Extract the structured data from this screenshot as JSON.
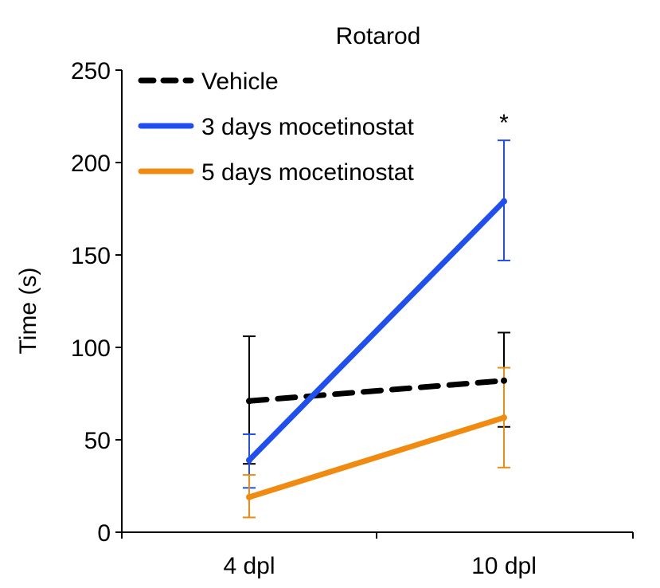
{
  "chart_data": {
    "type": "line",
    "title": "Rotarod",
    "xlabel": "",
    "ylabel": "Time (s)",
    "categories": [
      "4 dpl",
      "10 dpl"
    ],
    "ylim": [
      0,
      250
    ],
    "yticks": [
      0,
      50,
      100,
      150,
      200,
      250
    ],
    "grid": false,
    "legend_position": "top-left",
    "series": [
      {
        "name": "Vehicle",
        "color": "#000000",
        "style": "dashed",
        "values": [
          71,
          82
        ],
        "err_upper": [
          106,
          108
        ],
        "err_lower": [
          37,
          57
        ]
      },
      {
        "name": "3 days mocetinostat",
        "color": "#1f4ff0",
        "style": "solid",
        "values": [
          39,
          179
        ],
        "err_upper": [
          53,
          212
        ],
        "err_lower": [
          24,
          147
        ]
      },
      {
        "name": "5 days mocetinostat",
        "color": "#f08a10",
        "style": "solid",
        "values": [
          19,
          62
        ],
        "err_upper": [
          31,
          89
        ],
        "err_lower": [
          8,
          35
        ]
      }
    ],
    "annotations": [
      {
        "text": "*",
        "category": "10 dpl"
      }
    ]
  }
}
